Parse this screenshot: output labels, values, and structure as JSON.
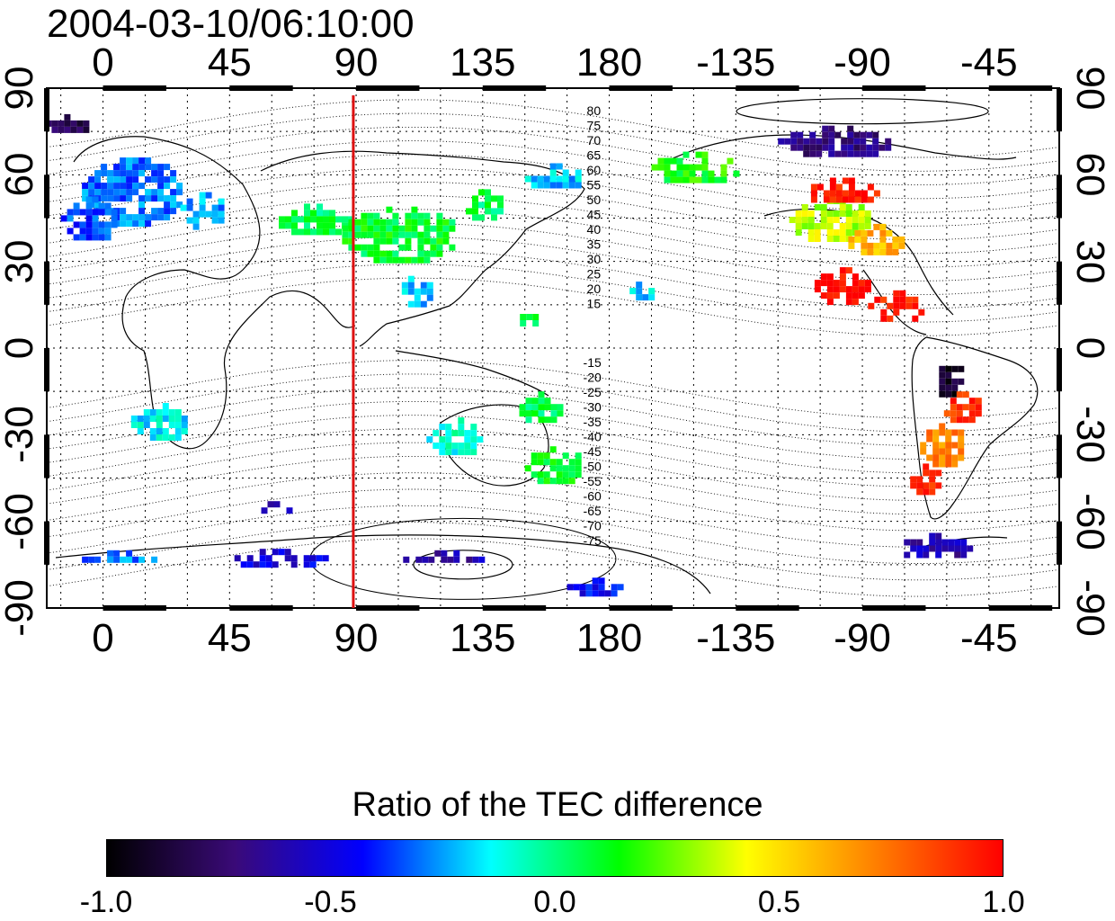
{
  "title": "2004-03-10/06:10:00",
  "map": {
    "lon_ticks_top": [
      "0",
      "45",
      "90",
      "135",
      "180",
      "-135",
      "-90",
      "-45"
    ],
    "lon_ticks_bottom": [
      "0",
      "45",
      "90",
      "135",
      "180",
      "-135",
      "-90",
      "-45"
    ],
    "lat_ticks_left": [
      "90",
      "60",
      "30",
      "0",
      "-30",
      "-60",
      "-90"
    ],
    "lat_ticks_right": [
      "90",
      "60",
      "30",
      "0",
      "-30",
      "-60",
      "-90"
    ],
    "lon_range": [
      -20,
      340
    ],
    "lat_range": [
      -90,
      90
    ],
    "marker_longitude": 89,
    "marker_color": "#dd1111",
    "dip_labels_north": [
      "80",
      "75",
      "70",
      "65",
      "60",
      "55",
      "50",
      "45",
      "40",
      "35",
      "30",
      "25",
      "20",
      "15"
    ],
    "dip_labels_south": [
      "-15",
      "-20",
      "-25",
      "-30",
      "-35",
      "-40",
      "-45",
      "-50",
      "-55",
      "-60",
      "-65",
      "-70",
      "-75"
    ]
  },
  "colorbar": {
    "title": "Ratio of the TEC difference",
    "range": [
      -1.0,
      1.0
    ],
    "ticks": [
      "-1.0",
      "-0.5",
      "0.0",
      "0.5",
      "1.0"
    ],
    "colors": [
      "#000000",
      "#3a0a78",
      "#0000ff",
      "#00ffff",
      "#00ff00",
      "#ffff00",
      "#ff8000",
      "#ff0000"
    ]
  },
  "tec_patches": [
    {
      "lon": -15,
      "lat": 78,
      "w": 20,
      "h": 6,
      "v": -0.8
    },
    {
      "lon": 10,
      "lat": 55,
      "w": 35,
      "h": 22,
      "v": -0.3
    },
    {
      "lon": -5,
      "lat": 45,
      "w": 20,
      "h": 15,
      "v": -0.35
    },
    {
      "lon": 35,
      "lat": 48,
      "w": 15,
      "h": 12,
      "v": -0.25
    },
    {
      "lon": 75,
      "lat": 45,
      "w": 25,
      "h": 10,
      "v": 0.05
    },
    {
      "lon": 105,
      "lat": 40,
      "w": 40,
      "h": 18,
      "v": 0.1
    },
    {
      "lon": 135,
      "lat": 50,
      "w": 12,
      "h": 10,
      "v": 0.05
    },
    {
      "lon": 110,
      "lat": 20,
      "w": 12,
      "h": 10,
      "v": -0.2
    },
    {
      "lon": 160,
      "lat": 60,
      "w": 20,
      "h": 8,
      "v": -0.2
    },
    {
      "lon": 210,
      "lat": 63,
      "w": 30,
      "h": 10,
      "v": 0.15
    },
    {
      "lon": 260,
      "lat": 72,
      "w": 40,
      "h": 10,
      "v": -0.7
    },
    {
      "lon": 258,
      "lat": 45,
      "w": 28,
      "h": 14,
      "v": 0.35
    },
    {
      "lon": 262,
      "lat": 55,
      "w": 25,
      "h": 8,
      "v": 0.95
    },
    {
      "lon": 275,
      "lat": 38,
      "w": 20,
      "h": 10,
      "v": 0.6
    },
    {
      "lon": 262,
      "lat": 22,
      "w": 18,
      "h": 12,
      "v": 1.0
    },
    {
      "lon": 282,
      "lat": 15,
      "w": 20,
      "h": 10,
      "v": 0.95
    },
    {
      "lon": 300,
      "lat": -10,
      "w": 10,
      "h": 12,
      "v": -0.9
    },
    {
      "lon": 305,
      "lat": -20,
      "w": 12,
      "h": 10,
      "v": 0.9
    },
    {
      "lon": 298,
      "lat": -33,
      "w": 15,
      "h": 14,
      "v": 0.7
    },
    {
      "lon": 292,
      "lat": -45,
      "w": 10,
      "h": 10,
      "v": 0.9
    },
    {
      "lon": 295,
      "lat": -68,
      "w": 25,
      "h": 8,
      "v": -0.6
    },
    {
      "lon": 20,
      "lat": -25,
      "w": 20,
      "h": 12,
      "v": -0.15
    },
    {
      "lon": 160,
      "lat": -40,
      "w": 20,
      "h": 12,
      "v": 0.1
    },
    {
      "lon": 155,
      "lat": -20,
      "w": 14,
      "h": 10,
      "v": 0.05
    },
    {
      "lon": 125,
      "lat": -30,
      "w": 20,
      "h": 12,
      "v": -0.1
    },
    {
      "lon": 60,
      "lat": -72,
      "w": 40,
      "h": 5,
      "v": -0.5
    },
    {
      "lon": 120,
      "lat": -72,
      "w": 40,
      "h": 4,
      "v": -0.6
    },
    {
      "lon": 175,
      "lat": -82,
      "w": 20,
      "h": 5,
      "v": -0.45
    },
    {
      "lon": 5,
      "lat": -72,
      "w": 25,
      "h": 4,
      "v": -0.3
    },
    {
      "lon": 60,
      "lat": -55,
      "w": 12,
      "h": 4,
      "v": -0.55
    },
    {
      "lon": 190,
      "lat": 20,
      "w": 10,
      "h": 6,
      "v": -0.2
    },
    {
      "lon": 150,
      "lat": 10,
      "w": 8,
      "h": 8,
      "v": 0.05
    }
  ]
}
